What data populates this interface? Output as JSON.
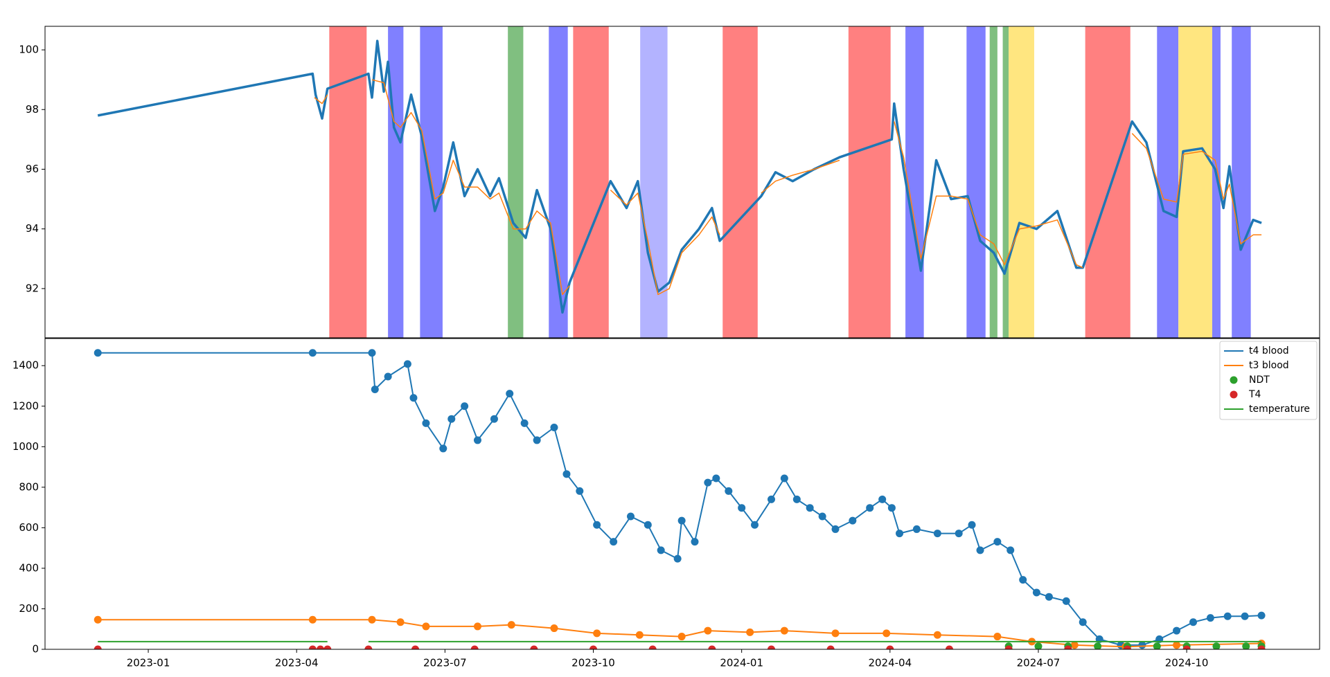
{
  "chart_data": [
    {
      "type": "line",
      "xlim": [
        2022.826,
        2024.974
      ],
      "ylim": [
        90.35,
        100.79
      ],
      "yticks": [
        92,
        94,
        96,
        98,
        100
      ],
      "spans": [
        {
          "start": 2023.305,
          "end": 2023.368,
          "color": "#ff8080"
        },
        {
          "start": 2023.404,
          "end": 2023.43,
          "color": "#8080ff"
        },
        {
          "start": 2023.458,
          "end": 2023.496,
          "color": "#8080ff"
        },
        {
          "start": 2023.606,
          "end": 2023.632,
          "color": "#80bf80"
        },
        {
          "start": 2023.675,
          "end": 2023.707,
          "color": "#8080ff"
        },
        {
          "start": 2023.716,
          "end": 2023.776,
          "color": "#ff8080"
        },
        {
          "start": 2023.829,
          "end": 2023.875,
          "color": "#b3b3ff"
        },
        {
          "start": 2023.968,
          "end": 2024.027,
          "color": "#ff8080"
        },
        {
          "start": 2024.18,
          "end": 2024.251,
          "color": "#ff8080"
        },
        {
          "start": 2024.276,
          "end": 2024.307,
          "color": "#8080ff"
        },
        {
          "start": 2024.379,
          "end": 2024.411,
          "color": "#8080ff"
        },
        {
          "start": 2024.418,
          "end": 2024.431,
          "color": "#80bf80"
        },
        {
          "start": 2024.44,
          "end": 2024.45,
          "color": "#80bf80"
        },
        {
          "start": 2024.45,
          "end": 2024.493,
          "color": "#ffe680"
        },
        {
          "start": 2024.579,
          "end": 2024.655,
          "color": "#ff8080"
        },
        {
          "start": 2024.7,
          "end": 2024.736,
          "color": "#8080ff"
        },
        {
          "start": 2024.736,
          "end": 2024.793,
          "color": "#ffe680"
        },
        {
          "start": 2024.793,
          "end": 2024.807,
          "color": "#8080ff"
        },
        {
          "start": 2024.826,
          "end": 2024.858,
          "color": "#8080ff"
        }
      ],
      "series": [
        {
          "color": "#1f77b4",
          "style": "line",
          "linewidth": 3.5,
          "x": [
            2022.915,
            2023.277,
            2023.282,
            2023.293,
            2023.302,
            2023.371,
            2023.377,
            2023.386,
            2023.397,
            2023.404,
            2023.414,
            2023.425,
            2023.443,
            2023.461,
            2023.483,
            2023.497,
            2023.514,
            2023.533,
            2023.555,
            2023.576,
            2023.591,
            2023.615,
            2023.636,
            2023.655,
            2023.678,
            2023.698,
            2023.71,
            2023.779,
            2023.806,
            2023.825,
            2023.842,
            2023.859,
            2023.878,
            2023.899,
            2023.928,
            2023.95,
            2023.963,
            2024.033,
            2024.057,
            2024.086,
            2024.122,
            2024.165,
            2024.253,
            2024.257,
            2024.273,
            2024.302,
            2024.328,
            2024.353,
            2024.381,
            2024.402,
            2024.425,
            2024.443,
            2024.468,
            2024.497,
            2024.532,
            2024.564,
            2024.575,
            2024.658,
            2024.682,
            2024.711,
            2024.733,
            2024.744,
            2024.776,
            2024.798,
            2024.812,
            2024.822,
            2024.841,
            2024.862,
            2024.876
          ],
          "values": [
            97.8,
            99.2,
            98.5,
            97.7,
            98.7,
            99.2,
            98.4,
            100.3,
            98.6,
            99.6,
            97.4,
            96.9,
            98.5,
            97.1,
            94.6,
            95.4,
            96.9,
            95.1,
            96.0,
            95.1,
            95.7,
            94.2,
            93.7,
            95.3,
            94.0,
            91.2,
            92.2,
            95.6,
            94.7,
            95.6,
            93.2,
            91.9,
            92.2,
            93.3,
            94.0,
            94.7,
            93.6,
            95.1,
            95.9,
            95.6,
            96.0,
            96.4,
            97.0,
            98.2,
            96.0,
            92.6,
            96.3,
            95.0,
            95.1,
            93.6,
            93.2,
            92.5,
            94.2,
            94.0,
            94.6,
            92.7,
            92.7,
            97.6,
            96.9,
            94.6,
            94.4,
            96.6,
            96.7,
            96.0,
            94.7,
            96.1,
            93.3,
            94.3,
            94.2
          ]
        },
        {
          "color": "#ff7f0e",
          "style": "line",
          "linewidth": 1.5,
          "x": [
            2023.28,
            2023.293,
            2023.302,
            null,
            2023.377,
            2023.397,
            2023.414,
            2023.425,
            2023.443,
            2023.461,
            2023.483,
            2023.497,
            2023.514,
            2023.533,
            2023.555,
            2023.576,
            2023.591,
            2023.615,
            2023.636,
            2023.655,
            2023.678,
            2023.698,
            2023.71,
            null,
            2023.779,
            2023.806,
            2023.825,
            2023.842,
            2023.859,
            2023.878,
            2023.899,
            2023.928,
            2023.95,
            2023.963,
            null,
            2024.033,
            2024.057,
            2024.086,
            2024.122,
            2024.165,
            null,
            2024.257,
            2024.273,
            2024.302,
            2024.328,
            2024.353,
            2024.381,
            2024.402,
            2024.425,
            2024.443,
            2024.468,
            2024.497,
            2024.532,
            2024.564,
            2024.575,
            null,
            2024.658,
            2024.682,
            2024.711,
            2024.733,
            2024.744,
            2024.776,
            2024.798,
            2024.812,
            2024.822,
            2024.841,
            2024.862,
            2024.876
          ],
          "values": [
            98.4,
            98.2,
            98.5,
            null,
            99.0,
            98.9,
            97.6,
            97.4,
            97.9,
            97.3,
            95.0,
            95.2,
            96.3,
            95.4,
            95.4,
            95.0,
            95.2,
            94.0,
            94.0,
            94.6,
            94.2,
            91.8,
            92.1,
            null,
            95.3,
            94.8,
            95.2,
            93.6,
            91.8,
            92.0,
            93.2,
            93.8,
            94.4,
            93.8,
            null,
            95.2,
            95.6,
            95.8,
            96.0,
            96.3,
            null,
            97.6,
            96.4,
            93.0,
            95.1,
            95.1,
            95.0,
            93.8,
            93.5,
            92.8,
            94.0,
            94.1,
            94.3,
            92.8,
            92.7,
            null,
            97.2,
            96.7,
            95.0,
            94.9,
            96.5,
            96.6,
            96.3,
            95.0,
            95.5,
            93.5,
            93.8,
            93.8
          ]
        }
      ]
    },
    {
      "type": "line",
      "xlim": [
        2022.826,
        2024.974
      ],
      "ylim": [
        0,
        1534
      ],
      "yticks": [
        0,
        200,
        400,
        600,
        800,
        1000,
        1200,
        1400
      ],
      "xticks": [
        {
          "value": 2023.0,
          "label": "2023-01"
        },
        {
          "value": 2023.25,
          "label": "2023-04"
        },
        {
          "value": 2023.5,
          "label": "2023-07"
        },
        {
          "value": 2023.75,
          "label": "2023-10"
        },
        {
          "value": 2024.0,
          "label": "2024-01"
        },
        {
          "value": 2024.25,
          "label": "2024-04"
        },
        {
          "value": 2024.5,
          "label": "2024-07"
        },
        {
          "value": 2024.75,
          "label": "2024-10"
        }
      ],
      "legend": "upper right",
      "series": [
        {
          "name": "t4 blood",
          "color": "#1f77b4",
          "style": "line",
          "marker": true,
          "x": [
            2022.915,
            2023.277,
            2023.377,
            2023.382,
            2023.404,
            2023.437,
            2023.447,
            2023.468,
            2023.497,
            2023.511,
            2023.533,
            2023.555,
            2023.583,
            2023.609,
            2023.634,
            2023.655,
            2023.684,
            2023.705,
            2023.727,
            2023.756,
            2023.784,
            2023.813,
            2023.842,
            2023.864,
            2023.892,
            2023.899,
            2023.921,
            2023.943,
            2023.957,
            2023.978,
            2024.0,
            2024.022,
            2024.05,
            2024.072,
            2024.093,
            2024.115,
            2024.136,
            2024.158,
            2024.187,
            2024.216,
            2024.237,
            2024.253,
            2024.266,
            2024.295,
            2024.33,
            2024.366,
            2024.388,
            2024.402,
            2024.431,
            2024.453,
            2024.474,
            2024.497,
            2024.518,
            2024.547,
            2024.575,
            2024.603,
            2024.639,
            2024.675,
            2024.704,
            2024.733,
            2024.761,
            2024.79,
            2024.819,
            2024.848,
            2024.876
          ],
          "values": [
            1463,
            1463,
            1463,
            1283,
            1346,
            1408,
            1241,
            1116,
            991,
            1137,
            1200,
            1032,
            1137,
            1262,
            1116,
            1032,
            1095,
            865,
            781,
            614,
            531,
            656,
            614,
            489,
            447,
            635,
            531,
            823,
            844,
            781,
            698,
            614,
            740,
            844,
            740,
            698,
            656,
            593,
            635,
            698,
            740,
            698,
            572,
            593,
            572,
            572,
            614,
            489,
            531,
            489,
            343,
            280,
            259,
            238,
            134,
            50,
            21,
            21,
            50,
            92,
            134,
            155,
            163,
            163,
            167
          ]
        },
        {
          "name": "t3 blood",
          "color": "#ff7f0e",
          "style": "line",
          "marker": true,
          "x": [
            2022.915,
            2023.277,
            2023.377,
            2023.425,
            2023.468,
            2023.555,
            2023.612,
            2023.684,
            2023.756,
            2023.828,
            2023.899,
            2023.943,
            2024.014,
            2024.072,
            2024.158,
            2024.244,
            2024.33,
            2024.431,
            2024.489,
            2024.561,
            2024.647,
            2024.733,
            2024.876
          ],
          "values": [
            146,
            146,
            146,
            134,
            113,
            113,
            121,
            104,
            79,
            71,
            63,
            92,
            84,
            92,
            79,
            79,
            71,
            63,
            38,
            21,
            13,
            21,
            29
          ]
        },
        {
          "name": "NDT",
          "color": "#2ca02c",
          "style": "dots",
          "x": [
            2024.45,
            2024.5,
            2024.55,
            2024.6,
            2024.65,
            2024.7,
            2024.75,
            2024.8,
            2024.85,
            2024.876
          ],
          "values": [
            15,
            15,
            15,
            15,
            15,
            15,
            15,
            15,
            15,
            15
          ]
        },
        {
          "name": "T4",
          "color": "#d62728",
          "style": "dots",
          "x": [
            2022.915,
            2023.277,
            2023.29,
            2023.302,
            2023.371,
            2023.45,
            2023.55,
            2023.65,
            2023.75,
            2023.85,
            2023.95,
            2024.05,
            2024.15,
            2024.25,
            2024.35,
            2024.45,
            2024.55,
            2024.65,
            2024.75,
            2024.876
          ],
          "values": [
            0,
            0,
            0,
            0,
            0,
            0,
            0,
            0,
            0,
            0,
            0,
            0,
            0,
            0,
            0,
            0,
            0,
            0,
            0,
            0
          ]
        },
        {
          "name": "temperature",
          "color": "#2ca02c",
          "style": "line",
          "x": [
            2022.915,
            2023.302,
            null,
            2023.371,
            2024.876
          ],
          "values": [
            38,
            38,
            null,
            38,
            38
          ]
        }
      ]
    }
  ]
}
